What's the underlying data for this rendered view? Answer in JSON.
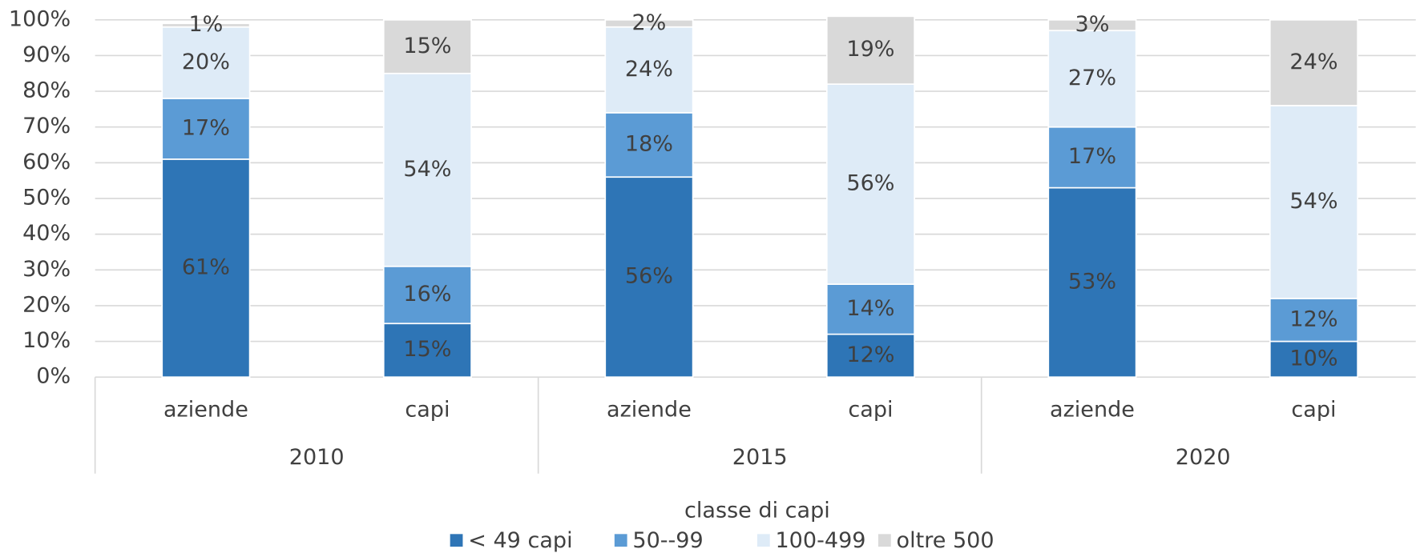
{
  "chart_data": {
    "type": "stacked_bar",
    "categories": [
      "aziende",
      "capi",
      "aziende",
      "capi",
      "aziende",
      "capi"
    ],
    "groups": [
      "2010",
      "2015",
      "2020"
    ],
    "legend_title": "classe di capi",
    "series": [
      {
        "name": "< 49 capi",
        "color": "#2e75b6",
        "values": [
          61,
          15,
          56,
          12,
          53,
          10
        ],
        "value_labels": [
          "61%",
          "15%",
          "56%",
          "12%",
          "53%",
          "10%"
        ]
      },
      {
        "name": "50--99",
        "color": "#5b9bd5",
        "values": [
          17,
          16,
          18,
          14,
          17,
          12
        ],
        "value_labels": [
          "17%",
          "16%",
          "18%",
          "14%",
          "17%",
          "12%"
        ]
      },
      {
        "name": "100-499",
        "color": "#deebf7",
        "values": [
          20,
          54,
          24,
          56,
          27,
          54
        ],
        "value_labels": [
          "20%",
          "54%",
          "24%",
          "56%",
          "27%",
          "54%"
        ]
      },
      {
        "name": "oltre 500",
        "color": "#d9d9d9",
        "values": [
          1,
          15,
          2,
          19,
          3,
          24
        ],
        "value_labels": [
          "1%",
          "15%",
          "2%",
          "19%",
          "3%",
          "24%"
        ]
      }
    ],
    "ylim": [
      0,
      100
    ],
    "yticks": [
      {
        "value": 0,
        "label": "0%"
      },
      {
        "value": 10,
        "label": "10%"
      },
      {
        "value": 20,
        "label": "20%"
      },
      {
        "value": 30,
        "label": "30%"
      },
      {
        "value": 40,
        "label": "40%"
      },
      {
        "value": 50,
        "label": "50%"
      },
      {
        "value": 60,
        "label": "60%"
      },
      {
        "value": 70,
        "label": "70%"
      },
      {
        "value": 80,
        "label": "80%"
      },
      {
        "value": 90,
        "label": "90%"
      },
      {
        "value": 100,
        "label": "100%"
      }
    ],
    "grid": true
  }
}
